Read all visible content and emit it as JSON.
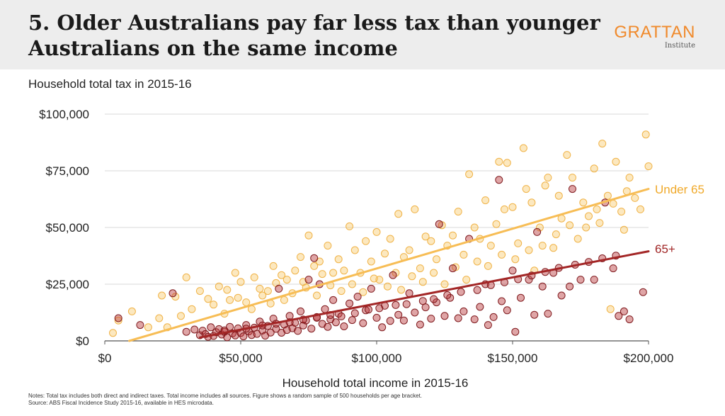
{
  "header": {
    "title_line1": "5. Older Australians pay far less tax than younger",
    "title_line2": "Australians on the same income",
    "logo_name": "GRATTAN",
    "logo_sub": "Institute"
  },
  "notes": {
    "line1": "Notes: Total tax includes both direct and indirect taxes. Total income includes all sources. Figure shows a random sample of 500 households per age bracket.",
    "line2": "Source: ABS Fiscal Incidence Study 2015-16, available in HES microdata."
  },
  "colors": {
    "under65": "#f5b335",
    "over65": "#a02424",
    "background": "#ffffff",
    "header": "#ededed",
    "grid": "#d9d9d9"
  },
  "chart_data": {
    "type": "scatter",
    "xlabel": "Household total income in 2015-16",
    "ylabel": "Household total tax in 2015-16",
    "xlim": [
      0,
      200000
    ],
    "ylim": [
      0,
      100000
    ],
    "x_ticks": [
      0,
      50000,
      100000,
      150000,
      200000
    ],
    "x_tick_labels": [
      "$0",
      "$50,000",
      "$100,000",
      "$150,000",
      "$200,000"
    ],
    "y_ticks": [
      0,
      25000,
      50000,
      75000,
      100000
    ],
    "y_tick_labels": [
      "$0",
      "$25,000",
      "$50,000",
      "$75,000",
      "$100,000"
    ],
    "grid": "horizontal",
    "series": [
      {
        "name": "Under 65",
        "color": "#f5b335",
        "trend": [
          [
            9000,
            0
          ],
          [
            200000,
            67000
          ]
        ],
        "points": [
          [
            3000,
            3500
          ],
          [
            5000,
            9000
          ],
          [
            10000,
            13000
          ],
          [
            16000,
            6000
          ],
          [
            20000,
            10000
          ],
          [
            21000,
            20000
          ],
          [
            23000,
            6000
          ],
          [
            26000,
            19500
          ],
          [
            28000,
            11000
          ],
          [
            30000,
            28000
          ],
          [
            32000,
            14000
          ],
          [
            35000,
            22000
          ],
          [
            38000,
            18500
          ],
          [
            40000,
            16000
          ],
          [
            42000,
            24000
          ],
          [
            45000,
            22500
          ],
          [
            46000,
            18000
          ],
          [
            48000,
            30000
          ],
          [
            50000,
            26000
          ],
          [
            52000,
            17000
          ],
          [
            55000,
            28000
          ],
          [
            57000,
            23000
          ],
          [
            60000,
            22000
          ],
          [
            62000,
            33000
          ],
          [
            63000,
            25500
          ],
          [
            65000,
            29000
          ],
          [
            67000,
            27000
          ],
          [
            70000,
            31000
          ],
          [
            72000,
            37000
          ],
          [
            73000,
            26000
          ],
          [
            75000,
            46500
          ],
          [
            77000,
            33000
          ],
          [
            79000,
            35000
          ],
          [
            80000,
            29500
          ],
          [
            82000,
            42000
          ],
          [
            84000,
            30000
          ],
          [
            86000,
            36000
          ],
          [
            88000,
            31000
          ],
          [
            90000,
            50500
          ],
          [
            92000,
            40000
          ],
          [
            94000,
            30000
          ],
          [
            96000,
            44000
          ],
          [
            98000,
            35000
          ],
          [
            100000,
            48000
          ],
          [
            101000,
            27000
          ],
          [
            103000,
            38500
          ],
          [
            105000,
            45000
          ],
          [
            107000,
            30000
          ],
          [
            108000,
            56000
          ],
          [
            110000,
            37000
          ],
          [
            112000,
            40000
          ],
          [
            114000,
            58000
          ],
          [
            116000,
            32000
          ],
          [
            118000,
            46000
          ],
          [
            120000,
            44000
          ],
          [
            122000,
            36000
          ],
          [
            124000,
            51000
          ],
          [
            126000,
            42000
          ],
          [
            128000,
            46500
          ],
          [
            130000,
            57000
          ],
          [
            132000,
            38000
          ],
          [
            134000,
            73500
          ],
          [
            136000,
            50000
          ],
          [
            138000,
            45000
          ],
          [
            140000,
            62000
          ],
          [
            142000,
            42000
          ],
          [
            144000,
            51500
          ],
          [
            145000,
            79000
          ],
          [
            147000,
            58000
          ],
          [
            148000,
            78500
          ],
          [
            150000,
            59000
          ],
          [
            152000,
            43000
          ],
          [
            154000,
            85000
          ],
          [
            155000,
            67000
          ],
          [
            157000,
            61000
          ],
          [
            158000,
            31000
          ],
          [
            160000,
            50000
          ],
          [
            162000,
            68500
          ],
          [
            163000,
            72000
          ],
          [
            165000,
            41000
          ],
          [
            167000,
            64000
          ],
          [
            168000,
            54000
          ],
          [
            170000,
            82000
          ],
          [
            172000,
            72000
          ],
          [
            174000,
            45000
          ],
          [
            176000,
            61000
          ],
          [
            178000,
            55000
          ],
          [
            180000,
            76000
          ],
          [
            182000,
            52000
          ],
          [
            183000,
            87000
          ],
          [
            185000,
            64000
          ],
          [
            186000,
            14000
          ],
          [
            188000,
            79000
          ],
          [
            190000,
            57000
          ],
          [
            191000,
            49000
          ],
          [
            193000,
            72000
          ],
          [
            195000,
            63000
          ],
          [
            197000,
            58000
          ],
          [
            199000,
            91000
          ],
          [
            200000,
            77000
          ],
          [
            44000,
            12000
          ],
          [
            49000,
            19000
          ],
          [
            54000,
            14000
          ],
          [
            58000,
            20000
          ],
          [
            61000,
            16500
          ],
          [
            66000,
            18000
          ],
          [
            69000,
            21000
          ],
          [
            74000,
            23500
          ],
          [
            78000,
            20000
          ],
          [
            83000,
            24500
          ],
          [
            87000,
            22000
          ],
          [
            91000,
            25000
          ],
          [
            95000,
            21500
          ],
          [
            99000,
            27500
          ],
          [
            104000,
            24000
          ],
          [
            109000,
            22500
          ],
          [
            113000,
            28500
          ],
          [
            117000,
            26000
          ],
          [
            121000,
            30000
          ],
          [
            125000,
            25000
          ],
          [
            129000,
            32500
          ],
          [
            133000,
            27000
          ],
          [
            137000,
            35000
          ],
          [
            141000,
            33000
          ],
          [
            146000,
            38000
          ],
          [
            151000,
            36000
          ],
          [
            156000,
            40000
          ],
          [
            161000,
            42000
          ],
          [
            166000,
            47000
          ],
          [
            171000,
            51000
          ],
          [
            177000,
            50000
          ],
          [
            181000,
            58000
          ],
          [
            187000,
            60500
          ],
          [
            192000,
            66000
          ]
        ]
      },
      {
        "name": "65+",
        "color": "#a02424",
        "trend": [
          [
            35000,
            1500
          ],
          [
            200000,
            39500
          ]
        ],
        "points": [
          [
            5000,
            10000
          ],
          [
            13000,
            7000
          ],
          [
            25000,
            21000
          ],
          [
            30000,
            4000
          ],
          [
            33000,
            5000
          ],
          [
            35000,
            2500
          ],
          [
            36000,
            4500
          ],
          [
            37000,
            3000
          ],
          [
            38000,
            1800
          ],
          [
            39000,
            6000
          ],
          [
            40000,
            2200
          ],
          [
            41000,
            3800
          ],
          [
            42000,
            5200
          ],
          [
            43000,
            2800
          ],
          [
            44000,
            4000
          ],
          [
            45000,
            1600
          ],
          [
            46000,
            6200
          ],
          [
            47000,
            3300
          ],
          [
            48000,
            2400
          ],
          [
            49000,
            5500
          ],
          [
            50000,
            3500
          ],
          [
            51000,
            2000
          ],
          [
            52000,
            7000
          ],
          [
            53000,
            4200
          ],
          [
            54000,
            2600
          ],
          [
            55000,
            5800
          ],
          [
            56000,
            3100
          ],
          [
            57000,
            8500
          ],
          [
            58000,
            4600
          ],
          [
            59000,
            2300
          ],
          [
            60000,
            6600
          ],
          [
            61000,
            3700
          ],
          [
            62000,
            9800
          ],
          [
            63000,
            5300
          ],
          [
            64000,
            23000
          ],
          [
            65000,
            3600
          ],
          [
            66000,
            7200
          ],
          [
            67000,
            4800
          ],
          [
            68000,
            11000
          ],
          [
            69000,
            5600
          ],
          [
            70000,
            8000
          ],
          [
            71000,
            4400
          ],
          [
            72000,
            13000
          ],
          [
            73000,
            6800
          ],
          [
            74000,
            9000
          ],
          [
            75000,
            27000
          ],
          [
            76000,
            5400
          ],
          [
            77000,
            36500
          ],
          [
            78000,
            10500
          ],
          [
            79000,
            25000
          ],
          [
            80000,
            7500
          ],
          [
            81000,
            14000
          ],
          [
            82000,
            6200
          ],
          [
            83000,
            9500
          ],
          [
            84000,
            18000
          ],
          [
            85000,
            8200
          ],
          [
            86000,
            12000
          ],
          [
            88000,
            6400
          ],
          [
            90000,
            16500
          ],
          [
            91000,
            9200
          ],
          [
            93000,
            19500
          ],
          [
            95000,
            7800
          ],
          [
            96000,
            13500
          ],
          [
            98000,
            23000
          ],
          [
            100000,
            10200
          ],
          [
            102000,
            6000
          ],
          [
            103000,
            15500
          ],
          [
            105000,
            8800
          ],
          [
            106000,
            29000
          ],
          [
            108000,
            11500
          ],
          [
            110000,
            9000
          ],
          [
            112000,
            21000
          ],
          [
            114000,
            12500
          ],
          [
            116000,
            7200
          ],
          [
            118000,
            14800
          ],
          [
            120000,
            9800
          ],
          [
            122000,
            17000
          ],
          [
            123000,
            51500
          ],
          [
            125000,
            11000
          ],
          [
            127000,
            19000
          ],
          [
            128000,
            32000
          ],
          [
            130000,
            10000
          ],
          [
            132000,
            13000
          ],
          [
            134000,
            45000
          ],
          [
            136000,
            9500
          ],
          [
            138000,
            15000
          ],
          [
            140000,
            25000
          ],
          [
            141000,
            7000
          ],
          [
            143000,
            10500
          ],
          [
            145000,
            71000
          ],
          [
            146000,
            17500
          ],
          [
            148000,
            13500
          ],
          [
            150000,
            31000
          ],
          [
            151000,
            4000
          ],
          [
            153000,
            19000
          ],
          [
            156000,
            27000
          ],
          [
            158000,
            11500
          ],
          [
            159000,
            48000
          ],
          [
            161000,
            24000
          ],
          [
            163000,
            12000
          ],
          [
            165000,
            30000
          ],
          [
            168000,
            20000
          ],
          [
            171000,
            24000
          ],
          [
            172000,
            67000
          ],
          [
            175000,
            27000
          ],
          [
            180000,
            27000
          ],
          [
            184000,
            61000
          ],
          [
            187000,
            32000
          ],
          [
            189000,
            11000
          ],
          [
            191000,
            13000
          ],
          [
            193000,
            9500
          ],
          [
            198000,
            21500
          ],
          [
            44000,
            4600
          ],
          [
            52000,
            5400
          ],
          [
            58000,
            6800
          ],
          [
            63000,
            7600
          ],
          [
            68000,
            8200
          ],
          [
            73000,
            9400
          ],
          [
            78000,
            10200
          ],
          [
            83000,
            11400
          ],
          [
            87000,
            10800
          ],
          [
            92000,
            12200
          ],
          [
            97000,
            13800
          ],
          [
            101000,
            14400
          ],
          [
            107000,
            15800
          ],
          [
            111000,
            16200
          ],
          [
            117000,
            17600
          ],
          [
            121000,
            18400
          ],
          [
            126000,
            20200
          ],
          [
            131000,
            21600
          ],
          [
            137000,
            22400
          ],
          [
            142000,
            24600
          ],
          [
            147000,
            25800
          ],
          [
            152000,
            27200
          ],
          [
            157000,
            28800
          ],
          [
            162000,
            30400
          ],
          [
            167000,
            32200
          ],
          [
            173000,
            33600
          ],
          [
            178000,
            34800
          ],
          [
            183000,
            36400
          ],
          [
            188000,
            37600
          ]
        ]
      }
    ]
  }
}
